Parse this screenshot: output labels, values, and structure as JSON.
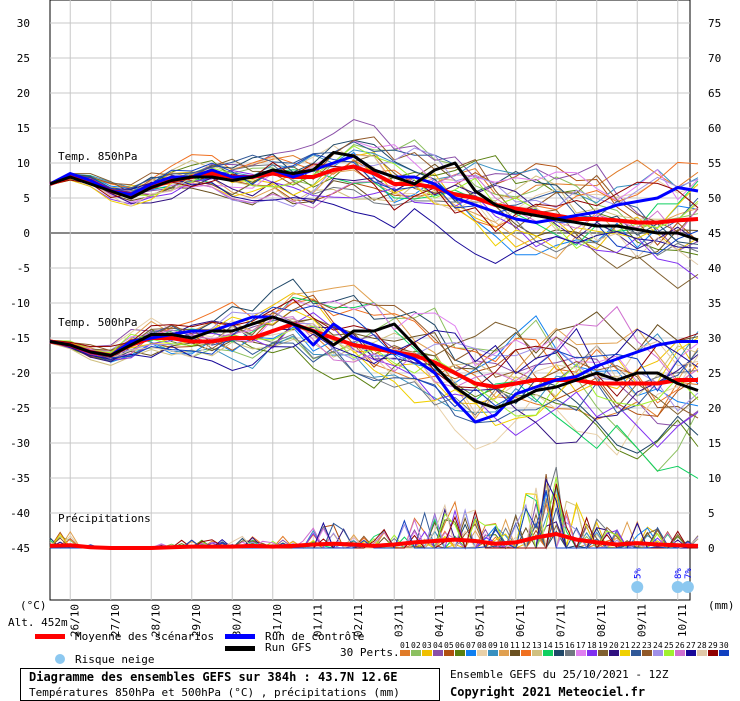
{
  "chart_data": {
    "type": "line",
    "title": "Diagramme des ensembles GEFS sur 384h : 43.7N 12.6E",
    "subtitle": "Températures 850hPa et 500hPa (°C) , précipitations (mm)",
    "run_label": "Ensemble GEFS du 25/10/2021 - 12Z",
    "copyright": "Copyright 2021 Meteociel.fr",
    "altitude": "Alt. 452m",
    "left_unit": "(°C)",
    "right_unit": "(mm)",
    "left_ticks": [
      30,
      25,
      20,
      15,
      10,
      5,
      0,
      -5,
      -10,
      -15,
      -20,
      -25,
      -30,
      -35,
      -40,
      -45
    ],
    "right_ticks": [
      75,
      70,
      65,
      60,
      55,
      50,
      45,
      40,
      35,
      30,
      25,
      20,
      15,
      10,
      5,
      0
    ],
    "ylim_left": [
      -45,
      30
    ],
    "ylim_right": [
      0,
      75
    ],
    "x_labels": [
      "26/10",
      "27/10",
      "28/10",
      "29/10",
      "30/10",
      "31/10",
      "01/11",
      "02/11",
      "03/11",
      "04/11",
      "05/11",
      "06/11",
      "07/11",
      "08/11",
      "09/11",
      "10/11"
    ],
    "x_step_hours": 12,
    "panel_labels": {
      "t850": "Temp. 850hPa",
      "t500": "Temp. 500hPa",
      "precip": "Précipitations"
    },
    "series": [
      {
        "name": "Moyenne des scénarios",
        "key": "mean850",
        "color": "#ff0000",
        "values": [
          7,
          8,
          7.5,
          6,
          5.5,
          6.5,
          7.5,
          8,
          8.5,
          8,
          8,
          8.5,
          8,
          8,
          9,
          9.5,
          8.5,
          7,
          7,
          6.5,
          5.5,
          5,
          4,
          3.5,
          3,
          2.5,
          2,
          2,
          1.8,
          1.5,
          1.5,
          1.8,
          2
        ]
      },
      {
        "name": "Run de contrôle",
        "key": "ctl850",
        "color": "#0000ff",
        "values": [
          7,
          8.5,
          7.5,
          6,
          5.5,
          7,
          8,
          8,
          9,
          8,
          8,
          9,
          8,
          9,
          10,
          11,
          9,
          8,
          8,
          7,
          5,
          4,
          3,
          2,
          1.5,
          2,
          2.5,
          3,
          4,
          4.5,
          5,
          6.5,
          6
        ]
      },
      {
        "name": "Run GFS",
        "key": "gfs850",
        "color": "#000000",
        "values": [
          7,
          8,
          7,
          6,
          5,
          6.5,
          7.5,
          8,
          8,
          7.5,
          8,
          9,
          8.5,
          9,
          11.5,
          11,
          9,
          8,
          7,
          9,
          10,
          6,
          4,
          3,
          2.5,
          2,
          1.5,
          1,
          1,
          0.5,
          0,
          0,
          -1
        ]
      },
      {
        "name": "Moyenne des scénarios",
        "key": "mean500",
        "color": "#ff0000",
        "values": [
          -15.5,
          -16,
          -17,
          -17.5,
          -16,
          -15,
          -15,
          -15.5,
          -15.5,
          -15,
          -15,
          -14,
          -13,
          -14,
          -15,
          -16,
          -16.5,
          -17,
          -17.5,
          -18.5,
          -20,
          -21.5,
          -22,
          -21.5,
          -21,
          -21,
          -21,
          -21.5,
          -21.5,
          -21.5,
          -21.5,
          -21,
          -21
        ]
      },
      {
        "name": "Run de contrôle",
        "key": "ctl500",
        "color": "#0000ff",
        "values": [
          -15.5,
          -16,
          -17,
          -17.5,
          -15.5,
          -15,
          -14.5,
          -14,
          -14,
          -13,
          -12,
          -12,
          -13,
          -16,
          -13,
          -15,
          -16,
          -17,
          -18,
          -20,
          -24,
          -27,
          -26,
          -23,
          -22,
          -21,
          -20.5,
          -19,
          -18,
          -17,
          -16,
          -15.5,
          -15.5
        ]
      },
      {
        "name": "Run GFS",
        "key": "gfs500",
        "color": "#000000",
        "values": [
          -15.5,
          -16,
          -17,
          -17.5,
          -16,
          -14.5,
          -14.5,
          -15,
          -14,
          -14,
          -13,
          -12,
          -13,
          -14,
          -16,
          -14,
          -14,
          -13,
          -16,
          -19,
          -22,
          -24,
          -25,
          -24,
          -22.5,
          -22,
          -21,
          -20,
          -21,
          -20,
          -20,
          -21.5,
          -22.5
        ]
      },
      {
        "name": "Moyenne des scénarios",
        "key": "meanpr",
        "color": "#ff0000",
        "values": [
          0.3,
          0.4,
          0.1,
          0,
          0,
          0,
          0.1,
          0.2,
          0.2,
          0.2,
          0.3,
          0.2,
          0.3,
          0.5,
          0.6,
          0.5,
          0.3,
          0.5,
          0.8,
          1,
          1.2,
          1,
          0.6,
          0.8,
          1.5,
          2,
          1.2,
          0.8,
          0.5,
          0.7,
          0.5,
          0.4,
          0.3
        ]
      }
    ],
    "legend": {
      "mean": "Moyenne des scénarios",
      "control": "Run de contrôle",
      "gfs": "Run GFS",
      "snow": "Risque neige",
      "perts": "30 Perts."
    },
    "perturbation_ids": [
      "01",
      "02",
      "03",
      "04",
      "05",
      "06",
      "07",
      "08",
      "09",
      "10",
      "11",
      "12",
      "13",
      "14",
      "15",
      "16",
      "17",
      "18",
      "19",
      "20",
      "21",
      "22",
      "23",
      "24",
      "25",
      "26",
      "27",
      "28",
      "29",
      "30"
    ],
    "perturbation_colors": [
      "#e07b28",
      "#8cc060",
      "#f0c000",
      "#8a4fa8",
      "#b05010",
      "#5a8010",
      "#1080f0",
      "#e8d0a8",
      "#3890c0",
      "#e0a050",
      "#6a5020",
      "#f07020",
      "#d0c080",
      "#10d060",
      "#204868",
      "#707880",
      "#e080f0",
      "#8030f0",
      "#806030",
      "#301080",
      "#f0d000",
      "#305898",
      "#905828",
      "#a090e8",
      "#a0f030",
      "#d070d0",
      "#180898",
      "#e0c8a8",
      "#900000",
      "#1040c0"
    ],
    "snow_risk": [
      {
        "hour": 348,
        "label": "5%"
      },
      {
        "hour": 372,
        "label": "8%"
      },
      {
        "hour": 378,
        "label": "7%"
      }
    ]
  }
}
